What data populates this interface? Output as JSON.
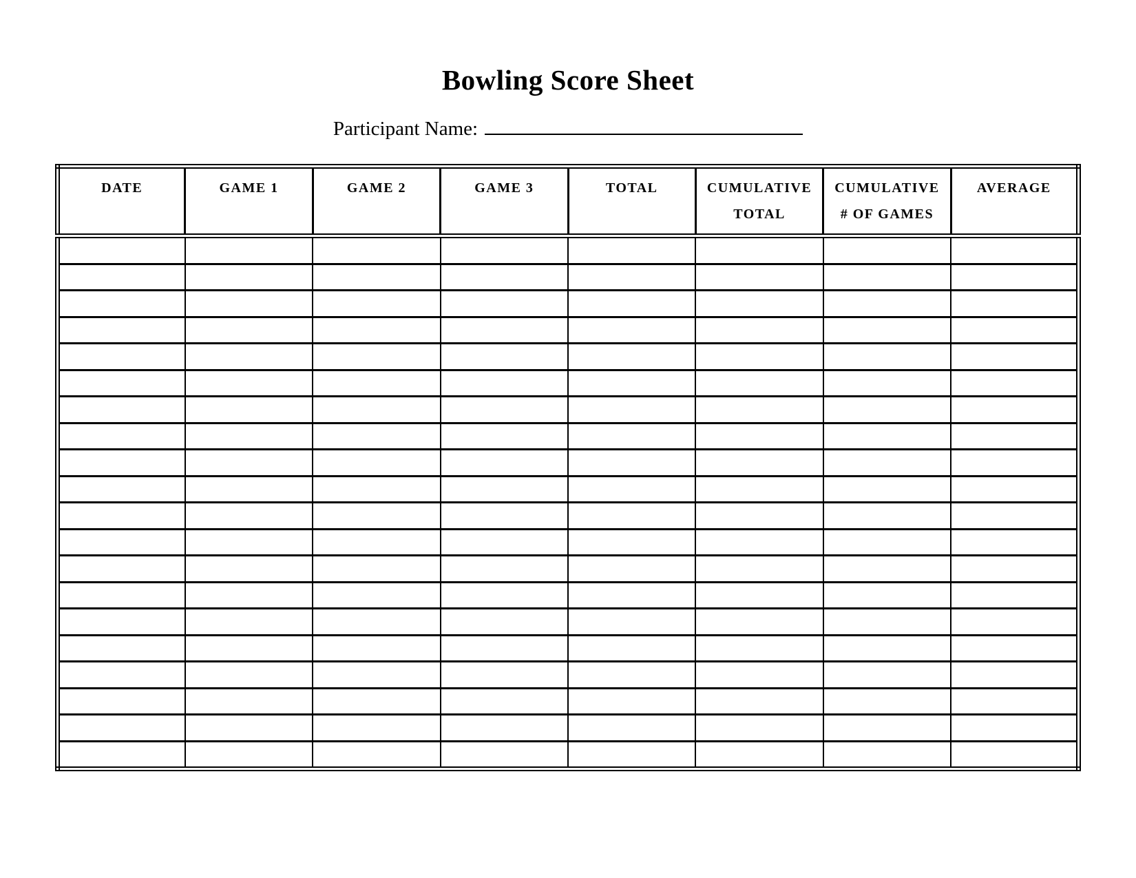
{
  "document": {
    "title": "Bowling Score Sheet",
    "participant_label": "Participant Name:"
  },
  "table": {
    "columns": [
      {
        "lines": [
          "DATE",
          ""
        ]
      },
      {
        "lines": [
          "GAME 1",
          ""
        ]
      },
      {
        "lines": [
          "GAME 2",
          ""
        ]
      },
      {
        "lines": [
          "GAME 3",
          ""
        ]
      },
      {
        "lines": [
          "TOTAL",
          ""
        ]
      },
      {
        "lines": [
          "CUMULATIVE",
          "TOTAL"
        ]
      },
      {
        "lines": [
          "CUMULATIVE",
          "# OF GAMES"
        ]
      },
      {
        "lines": [
          "AVERAGE",
          ""
        ]
      }
    ],
    "row_count": 20,
    "cell_value": ""
  },
  "colors": {
    "ink": "#000000",
    "paper": "#ffffff"
  }
}
